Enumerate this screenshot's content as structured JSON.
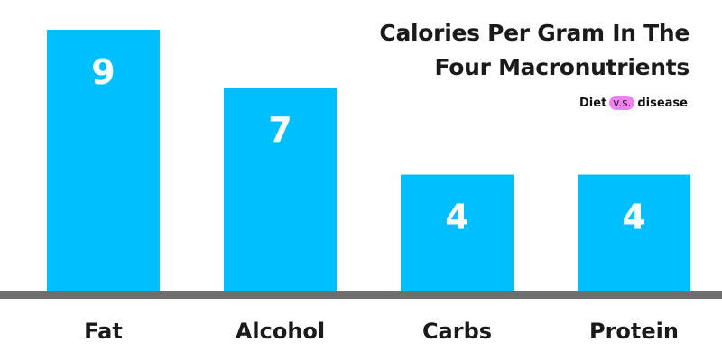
{
  "chart_data": {
    "type": "bar",
    "title": [
      "Calories Per Gram In The",
      "Four Macronutrients"
    ],
    "categories": [
      "Fat",
      "Alcohol",
      "Carbs",
      "Protein"
    ],
    "values": [
      9,
      7,
      4,
      4
    ],
    "data_labels": [
      "9",
      "7",
      "4",
      "4"
    ],
    "ylim": [
      0,
      9
    ],
    "grid": false,
    "legend": "none",
    "bar_color": "#00bfff",
    "baseline_color": "#6e6e6e",
    "label_color": "#ffffff"
  },
  "brand": {
    "name_left": "Diet",
    "name_mid": "v.s.",
    "name_right": "disease",
    "highlight_color": "#ee82ee"
  }
}
